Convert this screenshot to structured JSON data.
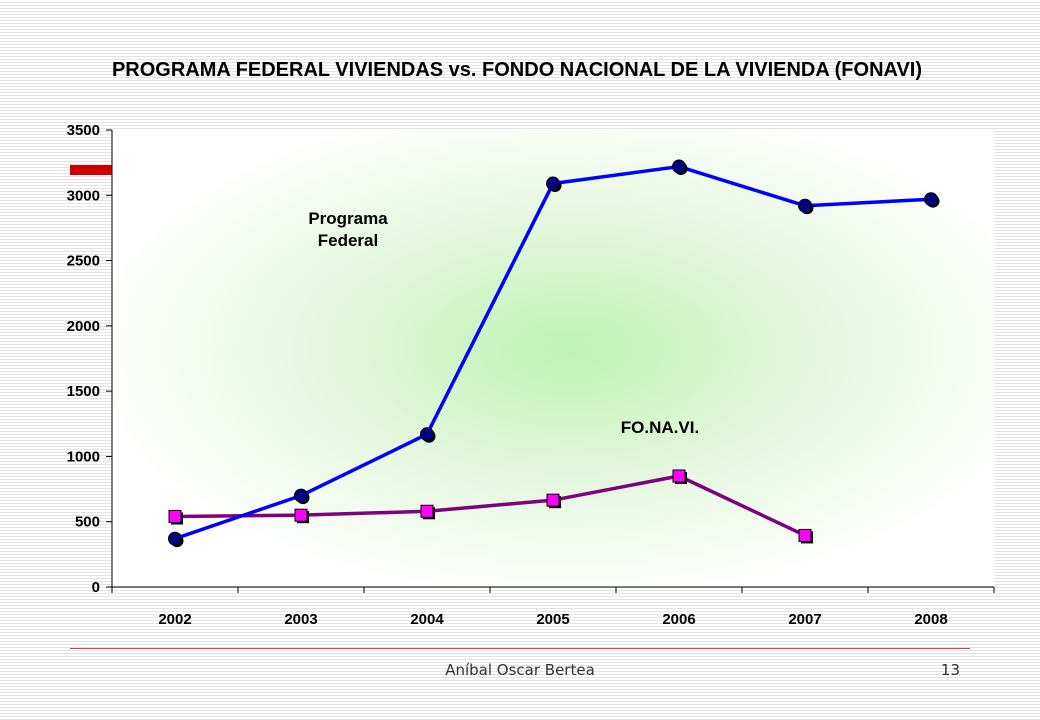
{
  "chart_data": {
    "type": "line",
    "title": "PROGRAMA FEDERAL VIVIENDAS vs. FONDO NACIONAL DE LA VIVIENDA (FONAVI)",
    "categories": [
      "2002",
      "2003",
      "2004",
      "2005",
      "2006",
      "2007",
      "2008"
    ],
    "series": [
      {
        "name": "Programa Federal",
        "name_lines": [
          "Programa",
          "Federal"
        ],
        "color": "#0000ff",
        "marker_color": "#000080",
        "marker": "circle",
        "values": [
          370,
          700,
          1170,
          3090,
          3220,
          2920,
          2970
        ]
      },
      {
        "name": "FO.NA.VI.",
        "name_lines": [
          "FO.NA.VI."
        ],
        "color": "#800080",
        "marker_color": "#ff00ff",
        "marker": "square",
        "values": [
          540,
          550,
          580,
          665,
          850,
          395,
          null
        ]
      }
    ],
    "ylim": [
      0,
      3500
    ],
    "yticks": [
      0,
      500,
      1000,
      1500,
      2000,
      2500,
      3000,
      3500
    ],
    "grid": false,
    "legend": "none",
    "xlabel": "",
    "ylabel": ""
  },
  "footer": {
    "author": "Aníbal Oscar Bertea",
    "page": "13"
  },
  "colors": {
    "accent_bar": "#cc0000",
    "footer_rule": "#c0504d"
  }
}
